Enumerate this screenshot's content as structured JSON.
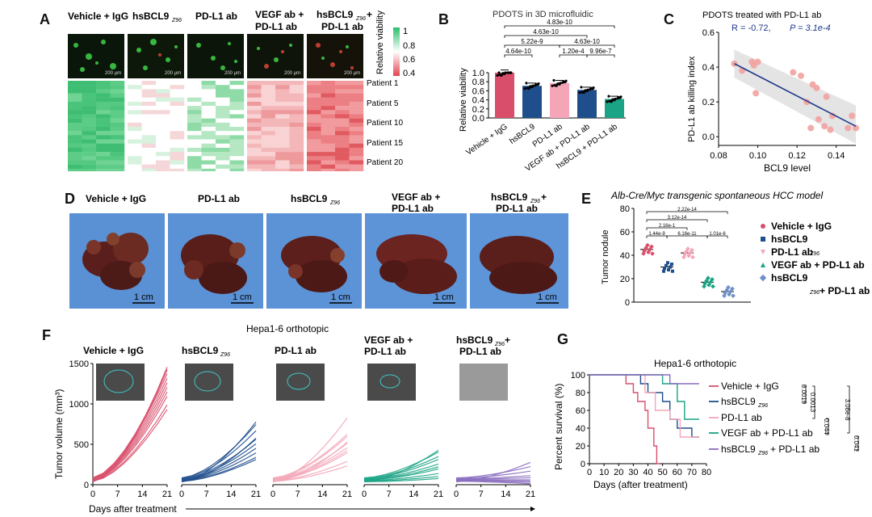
{
  "panel_letters": {
    "a": "A",
    "b": "B",
    "c": "C",
    "d": "D",
    "e": "E",
    "f": "F",
    "g": "G"
  },
  "colors": {
    "pink": "#d94f6b",
    "lightpink": "#f4a6b8",
    "navy": "#1f4e8c",
    "teal": "#1aa384",
    "purple": "#8a6bbf",
    "heat_green": "#3cc16e",
    "heat_red": "#e2454f",
    "bluebg": "#5a8fd0"
  },
  "panel_a": {
    "group_labels": [
      "Vehicle + IgG",
      "hsBCL9",
      "PD-L1 ab",
      "VEGF ab +",
      "PD-L1 ab",
      "hsBCL9",
      "+",
      "PD-L1 ab"
    ],
    "sub_z": "Z96",
    "scale_bar": "200 μm",
    "legend_title": "Relative viability",
    "legend_ticks": [
      "1",
      "0.8",
      "0.6",
      "0.4"
    ],
    "patients": [
      "Patient 1",
      "Patient 5",
      "Patient 10",
      "Patient 15",
      "Patient 20"
    ]
  },
  "panel_d": {
    "labels": [
      "Vehicle + IgG",
      "PD-L1 ab",
      "hsBCL9",
      "VEGF ab +",
      "PD-L1 ab",
      "hsBCL9",
      "+",
      "PD-L1 ab"
    ],
    "sub_z": "Z96",
    "scale": "1 cm"
  },
  "chart_data": [
    {
      "id": "B",
      "type": "bar",
      "title": "PDOTS in 3D microfluidic",
      "ylabel": "Relative viability",
      "ylim": [
        0,
        1.0
      ],
      "yticks": [
        "0.0",
        "0.2",
        "0.4",
        "0.6",
        "0.8",
        "1.0"
      ],
      "categories": [
        "Vehicle + IgG",
        "hsBCL9Z96",
        "PD-L1 ab",
        "VEGF ab + PD-L1 ab",
        "hsBCL9Z96 + PD-L1 ab"
      ],
      "category_labels": [
        "Vehicle + IgG",
        "hsBCL9",
        "PD-L1 ab",
        "VEGF ab + PD-L1 ab",
        "hsBCL9",
        "+ PD-L1 ab"
      ],
      "sub_z": "Z96",
      "values": [
        1.0,
        0.71,
        0.77,
        0.62,
        0.42
      ],
      "pvalues": [
        "4.83e-10",
        "4.63e-10",
        "5.22e-9",
        "4.63e-10",
        "4.64e-10",
        "1.20e-4",
        "9.96e-7"
      ]
    },
    {
      "id": "C",
      "type": "scatter",
      "title": "PDOTS treated with PD-L1 ab",
      "xlabel": "BCL9 level",
      "ylabel": "PD-L1 ab killing index",
      "xlim": [
        0.08,
        0.15
      ],
      "ylim": [
        -0.05,
        0.6
      ],
      "xticks": [
        "0.08",
        "0.10",
        "0.12",
        "0.14"
      ],
      "yticks": [
        "0.0",
        "0.2",
        "0.4",
        "0.6"
      ],
      "stat_r": "R = -0.72,",
      "stat_p": "P = 3.1e-4",
      "x": [
        0.088,
        0.092,
        0.097,
        0.098,
        0.1,
        0.099,
        0.118,
        0.122,
        0.125,
        0.128,
        0.127,
        0.13,
        0.131,
        0.134,
        0.135,
        0.137,
        0.138,
        0.146,
        0.148,
        0.15
      ],
      "y": [
        0.42,
        0.38,
        0.43,
        0.41,
        0.43,
        0.25,
        0.37,
        0.35,
        0.2,
        0.3,
        0.05,
        0.28,
        0.1,
        0.06,
        0.23,
        0.04,
        0.12,
        0.05,
        0.12,
        0.05
      ],
      "fit": [
        [
          0.088,
          0.42
        ],
        [
          0.15,
          0.06
        ]
      ]
    },
    {
      "id": "E",
      "type": "scatter",
      "title": "Alb-Cre/Myc transgenic spontaneous HCC model",
      "ylabel": "Tumor nodule",
      "ylim": [
        0,
        80
      ],
      "yticks": [
        "0",
        "20",
        "40",
        "60",
        "80"
      ],
      "legend": [
        "Vehicle + IgG",
        "hsBCL9",
        "PD-L1 ab",
        "VEGF ab + PD-L1 ab",
        "hsBCL9",
        "+ PD-L1 ab"
      ],
      "sub_z": "Z96",
      "means": [
        45,
        30,
        42,
        17,
        9
      ],
      "pvalues": [
        "2.22e-14",
        "3.12e-14",
        "2.16e-1",
        "1.44e-9",
        "6.16e-11",
        "1.01e-6"
      ]
    },
    {
      "id": "F",
      "type": "line",
      "title": "Hepa1-6 orthotopic",
      "ylabel": "Tumor volume (mm³)",
      "xlabel": "Days after treatment",
      "xticks": [
        "0",
        "7",
        "14",
        "21"
      ],
      "yticks": [
        "0",
        "500",
        "1000",
        "1500"
      ],
      "ylim": [
        0,
        1500
      ],
      "group_labels": [
        "Vehicle + IgG",
        "hsBCL9",
        "PD-L1 ab",
        "VEGF ab +",
        "PD-L1 ab",
        "hsBCL9",
        "+",
        "PD-L1 ab"
      ],
      "sub_z": "Z96",
      "series": [
        {
          "name": "Vehicle + IgG",
          "end_values": [
            1480,
            1400,
            1300,
            1250,
            1200,
            1150,
            1100,
            1000,
            950,
            1450,
            1350
          ]
        },
        {
          "name": "hsBCL9Z96",
          "end_values": [
            800,
            720,
            650,
            550,
            500,
            450,
            400,
            350,
            330,
            600
          ]
        },
        {
          "name": "PD-L1 ab",
          "end_values": [
            850,
            600,
            580,
            500,
            450,
            420,
            400,
            300,
            250,
            550
          ]
        },
        {
          "name": "VEGF ab + PD-L1 ab",
          "end_values": [
            450,
            380,
            330,
            300,
            250,
            220,
            200,
            150,
            120,
            100
          ]
        },
        {
          "name": "hsBCL9Z96 + PD-L1 ab",
          "end_values": [
            300,
            200,
            150,
            100,
            80,
            60,
            50,
            40,
            30
          ]
        }
      ]
    },
    {
      "id": "G",
      "type": "line",
      "title": "Hepa1-6 orthotopic",
      "ylabel": "Percent survival (%)",
      "xlabel": "Days (after treatment)",
      "xticks": [
        "0",
        "10",
        "20",
        "30",
        "40",
        "50",
        "60",
        "70",
        "80"
      ],
      "yticks": [
        "0",
        "20",
        "40",
        "60",
        "80",
        "100"
      ],
      "legend": [
        "Vehicle + IgG",
        "hsBCL9",
        "PD-L1 ab",
        "VEGF ab + PD-L1 ab",
        "hsBCL9",
        "+ PD-L1 ab"
      ],
      "sub_z": "Z96",
      "pvalues": [
        "0.0019",
        "0.0013",
        "3.08e-8",
        "0.044",
        "0.041"
      ],
      "series": [
        {
          "name": "Vehicle + IgG",
          "points": [
            [
              0,
              100
            ],
            [
              25,
              100
            ],
            [
              25,
              90
            ],
            [
              30,
              90
            ],
            [
              30,
              80
            ],
            [
              33,
              80
            ],
            [
              33,
              70
            ],
            [
              38,
              70
            ],
            [
              38,
              60
            ],
            [
              40,
              60
            ],
            [
              40,
              40
            ],
            [
              44,
              40
            ],
            [
              44,
              20
            ],
            [
              46,
              20
            ],
            [
              46,
              0
            ],
            [
              48,
              0
            ]
          ]
        },
        {
          "name": "hsBCL9Z96",
          "points": [
            [
              0,
              100
            ],
            [
              35,
              100
            ],
            [
              35,
              90
            ],
            [
              40,
              90
            ],
            [
              40,
              80
            ],
            [
              50,
              80
            ],
            [
              50,
              70
            ],
            [
              55,
              70
            ],
            [
              55,
              50
            ],
            [
              60,
              50
            ],
            [
              60,
              40
            ],
            [
              70,
              40
            ],
            [
              70,
              30
            ],
            [
              75,
              30
            ]
          ]
        },
        {
          "name": "PD-L1 ab",
          "points": [
            [
              0,
              100
            ],
            [
              38,
              100
            ],
            [
              38,
              80
            ],
            [
              45,
              80
            ],
            [
              45,
              60
            ],
            [
              55,
              60
            ],
            [
              55,
              50
            ],
            [
              62,
              50
            ],
            [
              62,
              30
            ],
            [
              75,
              30
            ]
          ]
        },
        {
          "name": "VEGF ab + PD-L1 ab",
          "points": [
            [
              0,
              100
            ],
            [
              50,
              100
            ],
            [
              50,
              90
            ],
            [
              60,
              90
            ],
            [
              60,
              70
            ],
            [
              65,
              70
            ],
            [
              65,
              50
            ],
            [
              75,
              50
            ]
          ]
        },
        {
          "name": "hsBCL9Z96 + PD-L1 ab",
          "points": [
            [
              0,
              100
            ],
            [
              55,
              100
            ],
            [
              55,
              90
            ],
            [
              75,
              90
            ]
          ]
        }
      ]
    }
  ]
}
